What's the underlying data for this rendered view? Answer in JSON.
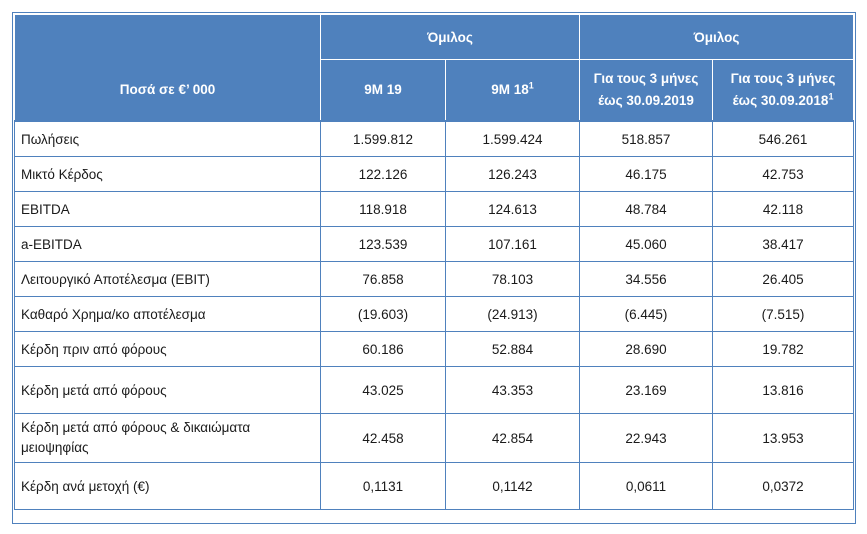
{
  "header": {
    "group_left": "Όμιλος",
    "group_right": "Όμιλος",
    "amount_label": "Ποσά  σε €’ 000",
    "columns": [
      {
        "text": "9M 19",
        "sup": ""
      },
      {
        "text": "9M 18",
        "sup": "1"
      },
      {
        "text": "Για τους 3 μήνες έως 30.09.2019",
        "sup": ""
      },
      {
        "text": "Για τους 3 μήνες έως 30.09.2018",
        "sup": "1"
      }
    ]
  },
  "rows": [
    {
      "label": "Πωλήσεις",
      "values": [
        "1.599.812",
        "1.599.424",
        "518.857",
        "546.261"
      ]
    },
    {
      "label": "Μικτό Κέρδος",
      "values": [
        "122.126",
        "126.243",
        "46.175",
        "42.753"
      ]
    },
    {
      "label": "EBITDA",
      "values": [
        "118.918",
        "124.613",
        "48.784",
        "42.118"
      ]
    },
    {
      "label": "a-EBITDA",
      "values": [
        "123.539",
        "107.161",
        "45.060",
        "38.417"
      ]
    },
    {
      "label": "Λειτουργικό Αποτέλεσμα (EBIT)",
      "values": [
        "76.858",
        "78.103",
        "34.556",
        "26.405"
      ]
    },
    {
      "label": "Καθαρό Χρημα/κο αποτέλεσμα",
      "values": [
        "(19.603)",
        "(24.913)",
        "(6.445)",
        "(7.515)"
      ]
    },
    {
      "label": "Κέρδη πριν από φόρους",
      "values": [
        "60.186",
        "52.884",
        "28.690",
        "19.782"
      ]
    },
    {
      "label": "Κέρδη μετά από φόρους",
      "values": [
        "43.025",
        "43.353",
        "23.169",
        "13.816"
      ]
    },
    {
      "label": "Κέρδη μετά από φόρους & δικαιώματα μειοψηφίας",
      "values": [
        "42.458",
        "42.854",
        "22.943",
        "13.953"
      ]
    },
    {
      "label": "Κέρδη ανά μετοχή (€)",
      "values": [
        "0,1131",
        "0,1142",
        "0,0611",
        "0,0372"
      ]
    }
  ],
  "colors": {
    "header_bg": "#4f81bd",
    "header_text": "#ffffff",
    "border": "#4f81bd"
  }
}
